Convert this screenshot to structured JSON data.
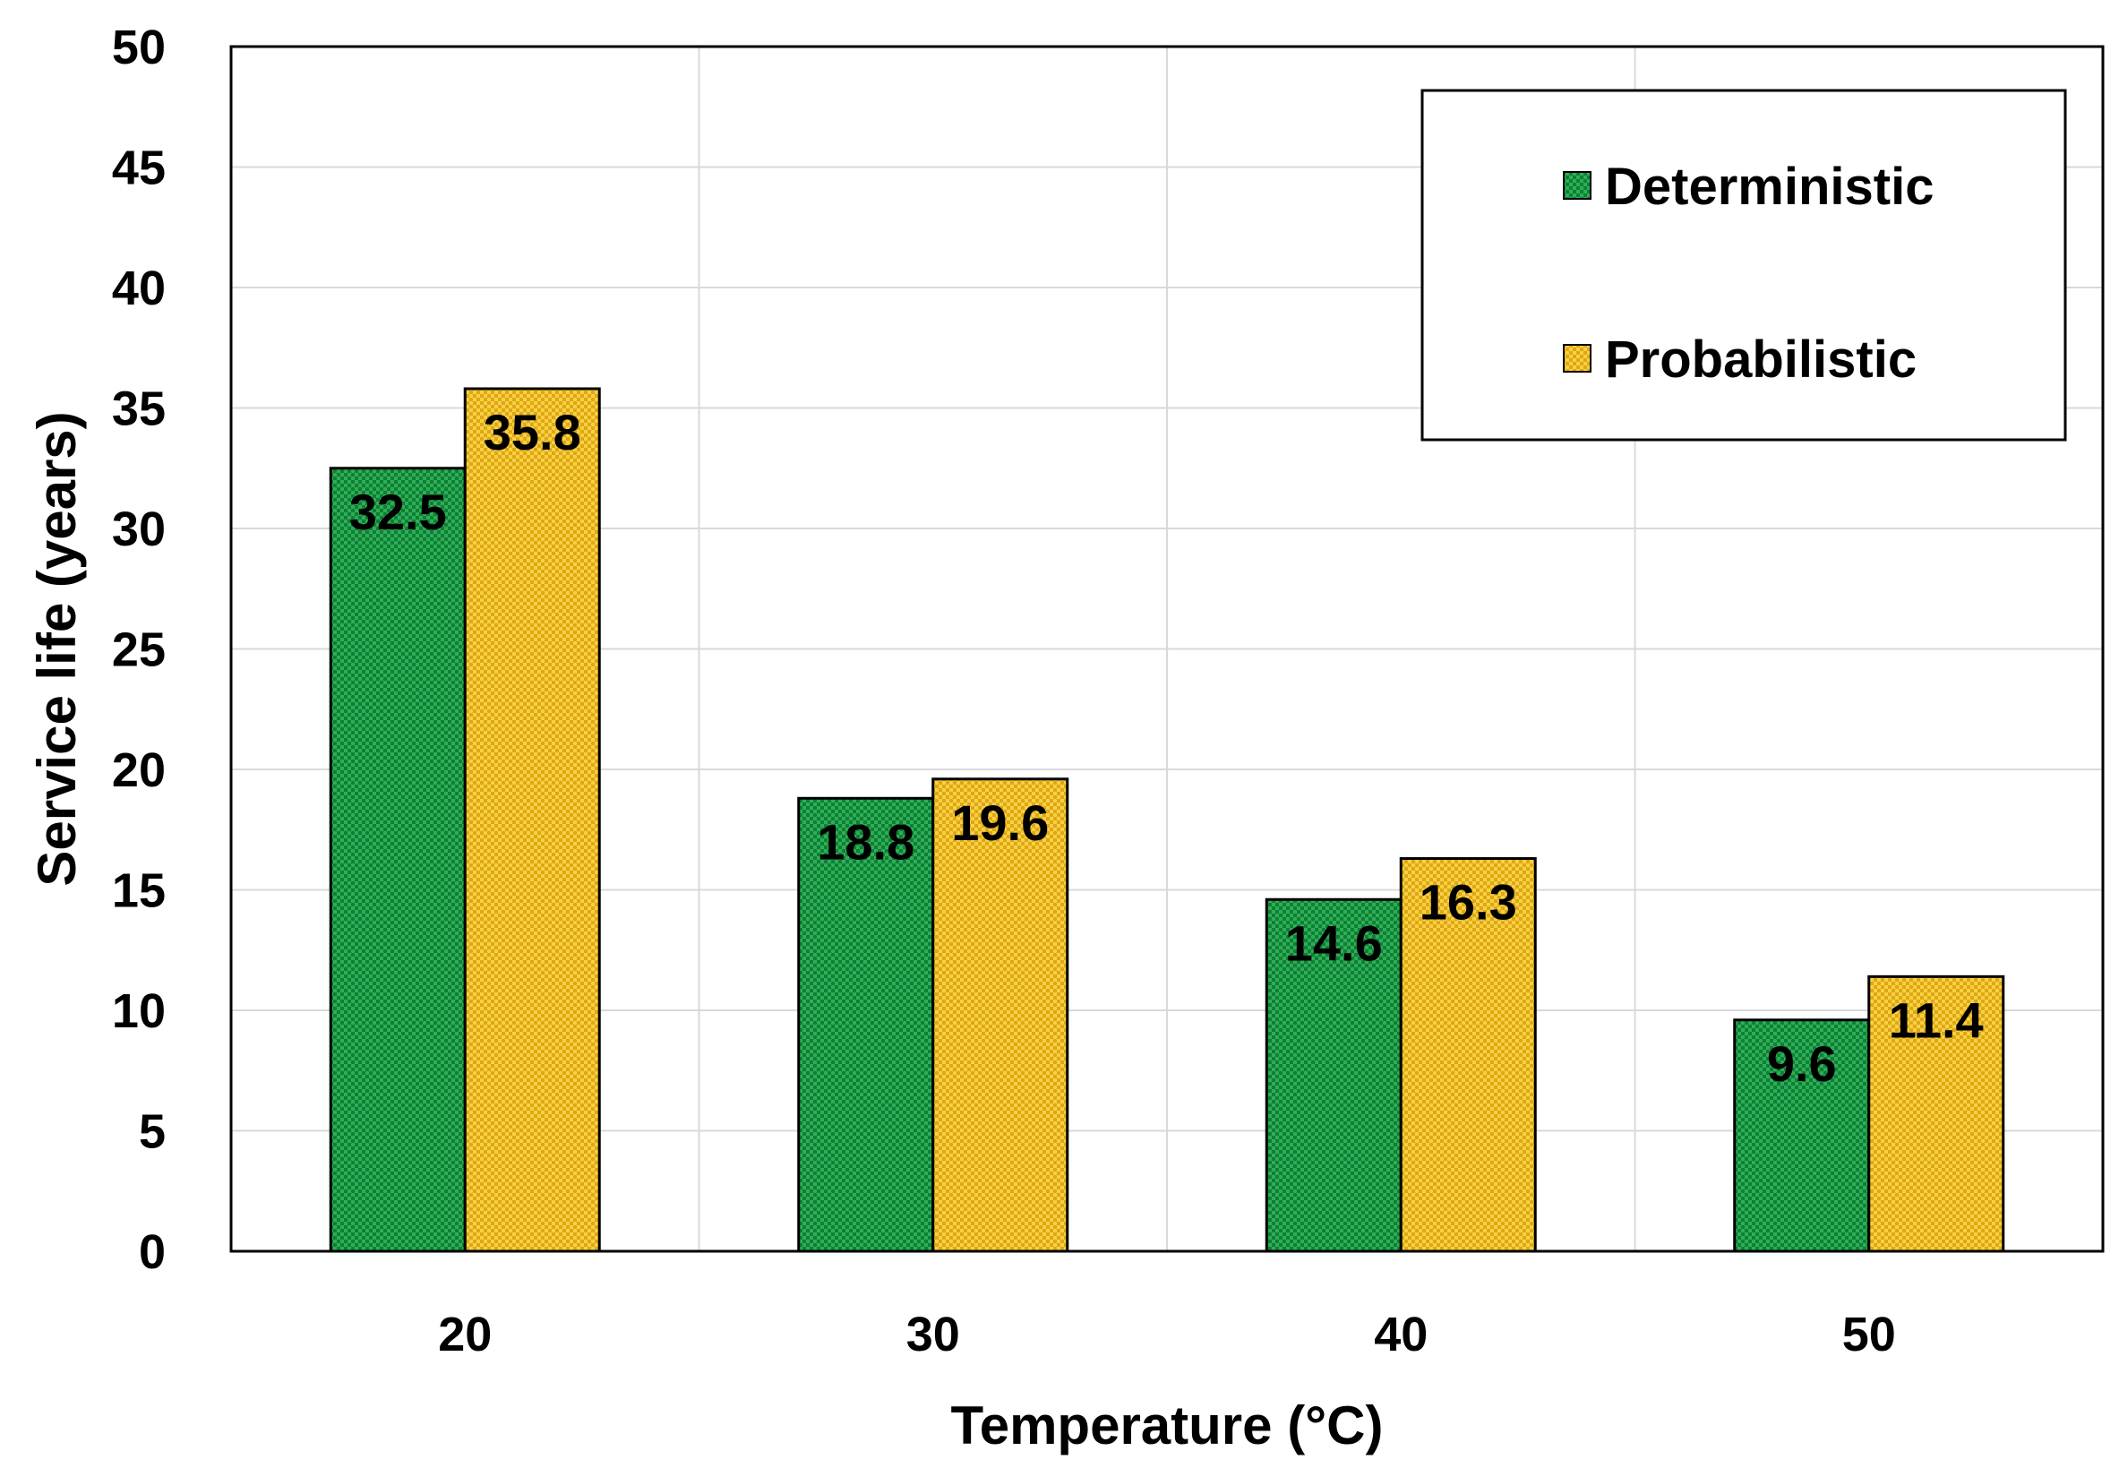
{
  "chart_data": {
    "type": "bar",
    "categories": [
      "20",
      "30",
      "40",
      "50"
    ],
    "series": [
      {
        "name": "Deterministic",
        "values": [
          32.5,
          18.8,
          14.6,
          9.6
        ],
        "color": "#22a34a"
      },
      {
        "name": "Probabilistic",
        "values": [
          35.8,
          19.6,
          16.3,
          11.4
        ],
        "color": "#f2c12e"
      }
    ],
    "data_labels": [
      [
        "32.5",
        "18.8",
        "14.6",
        "9.6"
      ],
      [
        "35.8",
        "19.6",
        "16.3",
        "11.4"
      ]
    ],
    "xlabel": "Temperature (°C)",
    "ylabel": "Service life (years)",
    "ylim": [
      0,
      50
    ],
    "yticks": [
      "0",
      "5",
      "10",
      "15",
      "20",
      "25",
      "30",
      "35",
      "40",
      "45",
      "50"
    ],
    "grid": true,
    "legend_position": "top-right"
  }
}
